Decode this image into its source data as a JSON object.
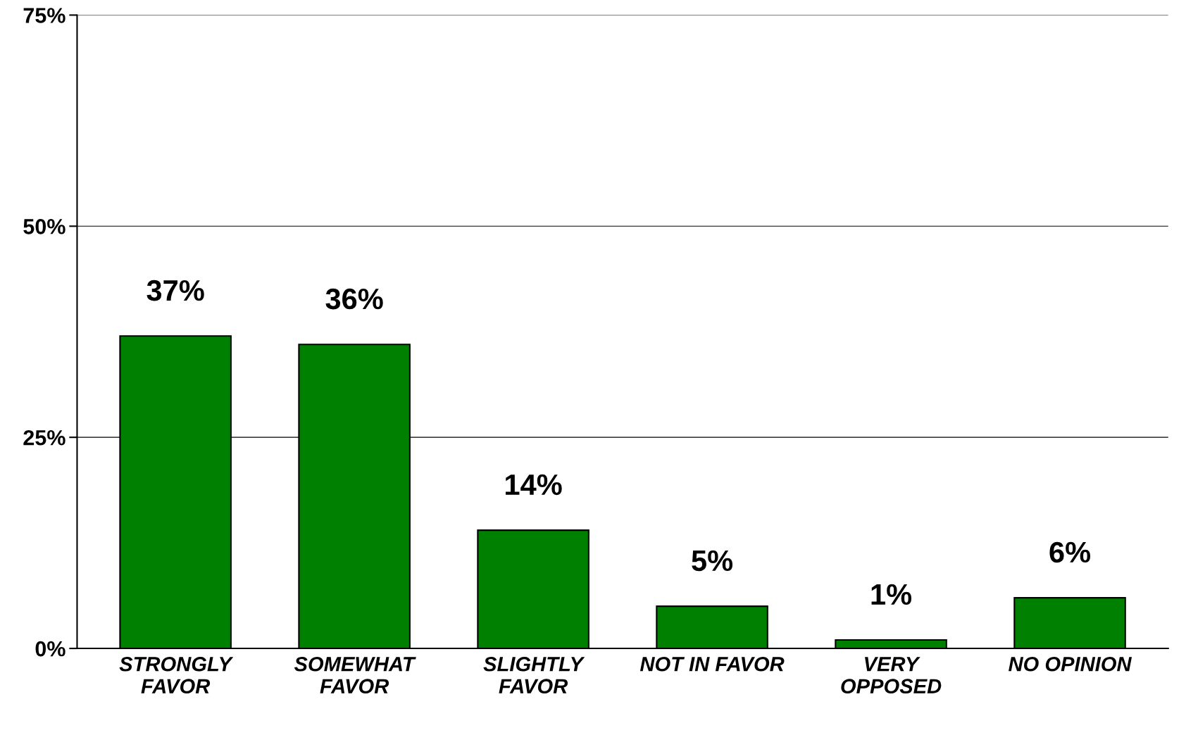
{
  "chart_data": {
    "type": "bar",
    "categories": [
      "STRONGLY\nFAVOR",
      "SOMEWHAT\nFAVOR",
      "SLIGHTLY\nFAVOR",
      "NOT IN FAVOR",
      "VERY\nOPPOSED",
      "NO OPINION"
    ],
    "values": [
      37,
      36,
      14,
      5,
      1,
      6
    ],
    "value_labels": [
      "37%",
      "36%",
      "14%",
      "5%",
      "1%",
      "6%"
    ],
    "color": "#008000",
    "ylim": [
      0,
      75
    ],
    "yticks": [
      {
        "value": 0,
        "label": "0%"
      },
      {
        "value": 25,
        "label": "25%"
      },
      {
        "value": 50,
        "label": "50%"
      },
      {
        "value": 75,
        "label": "75%"
      }
    ],
    "grid": "y",
    "legend": false
  }
}
